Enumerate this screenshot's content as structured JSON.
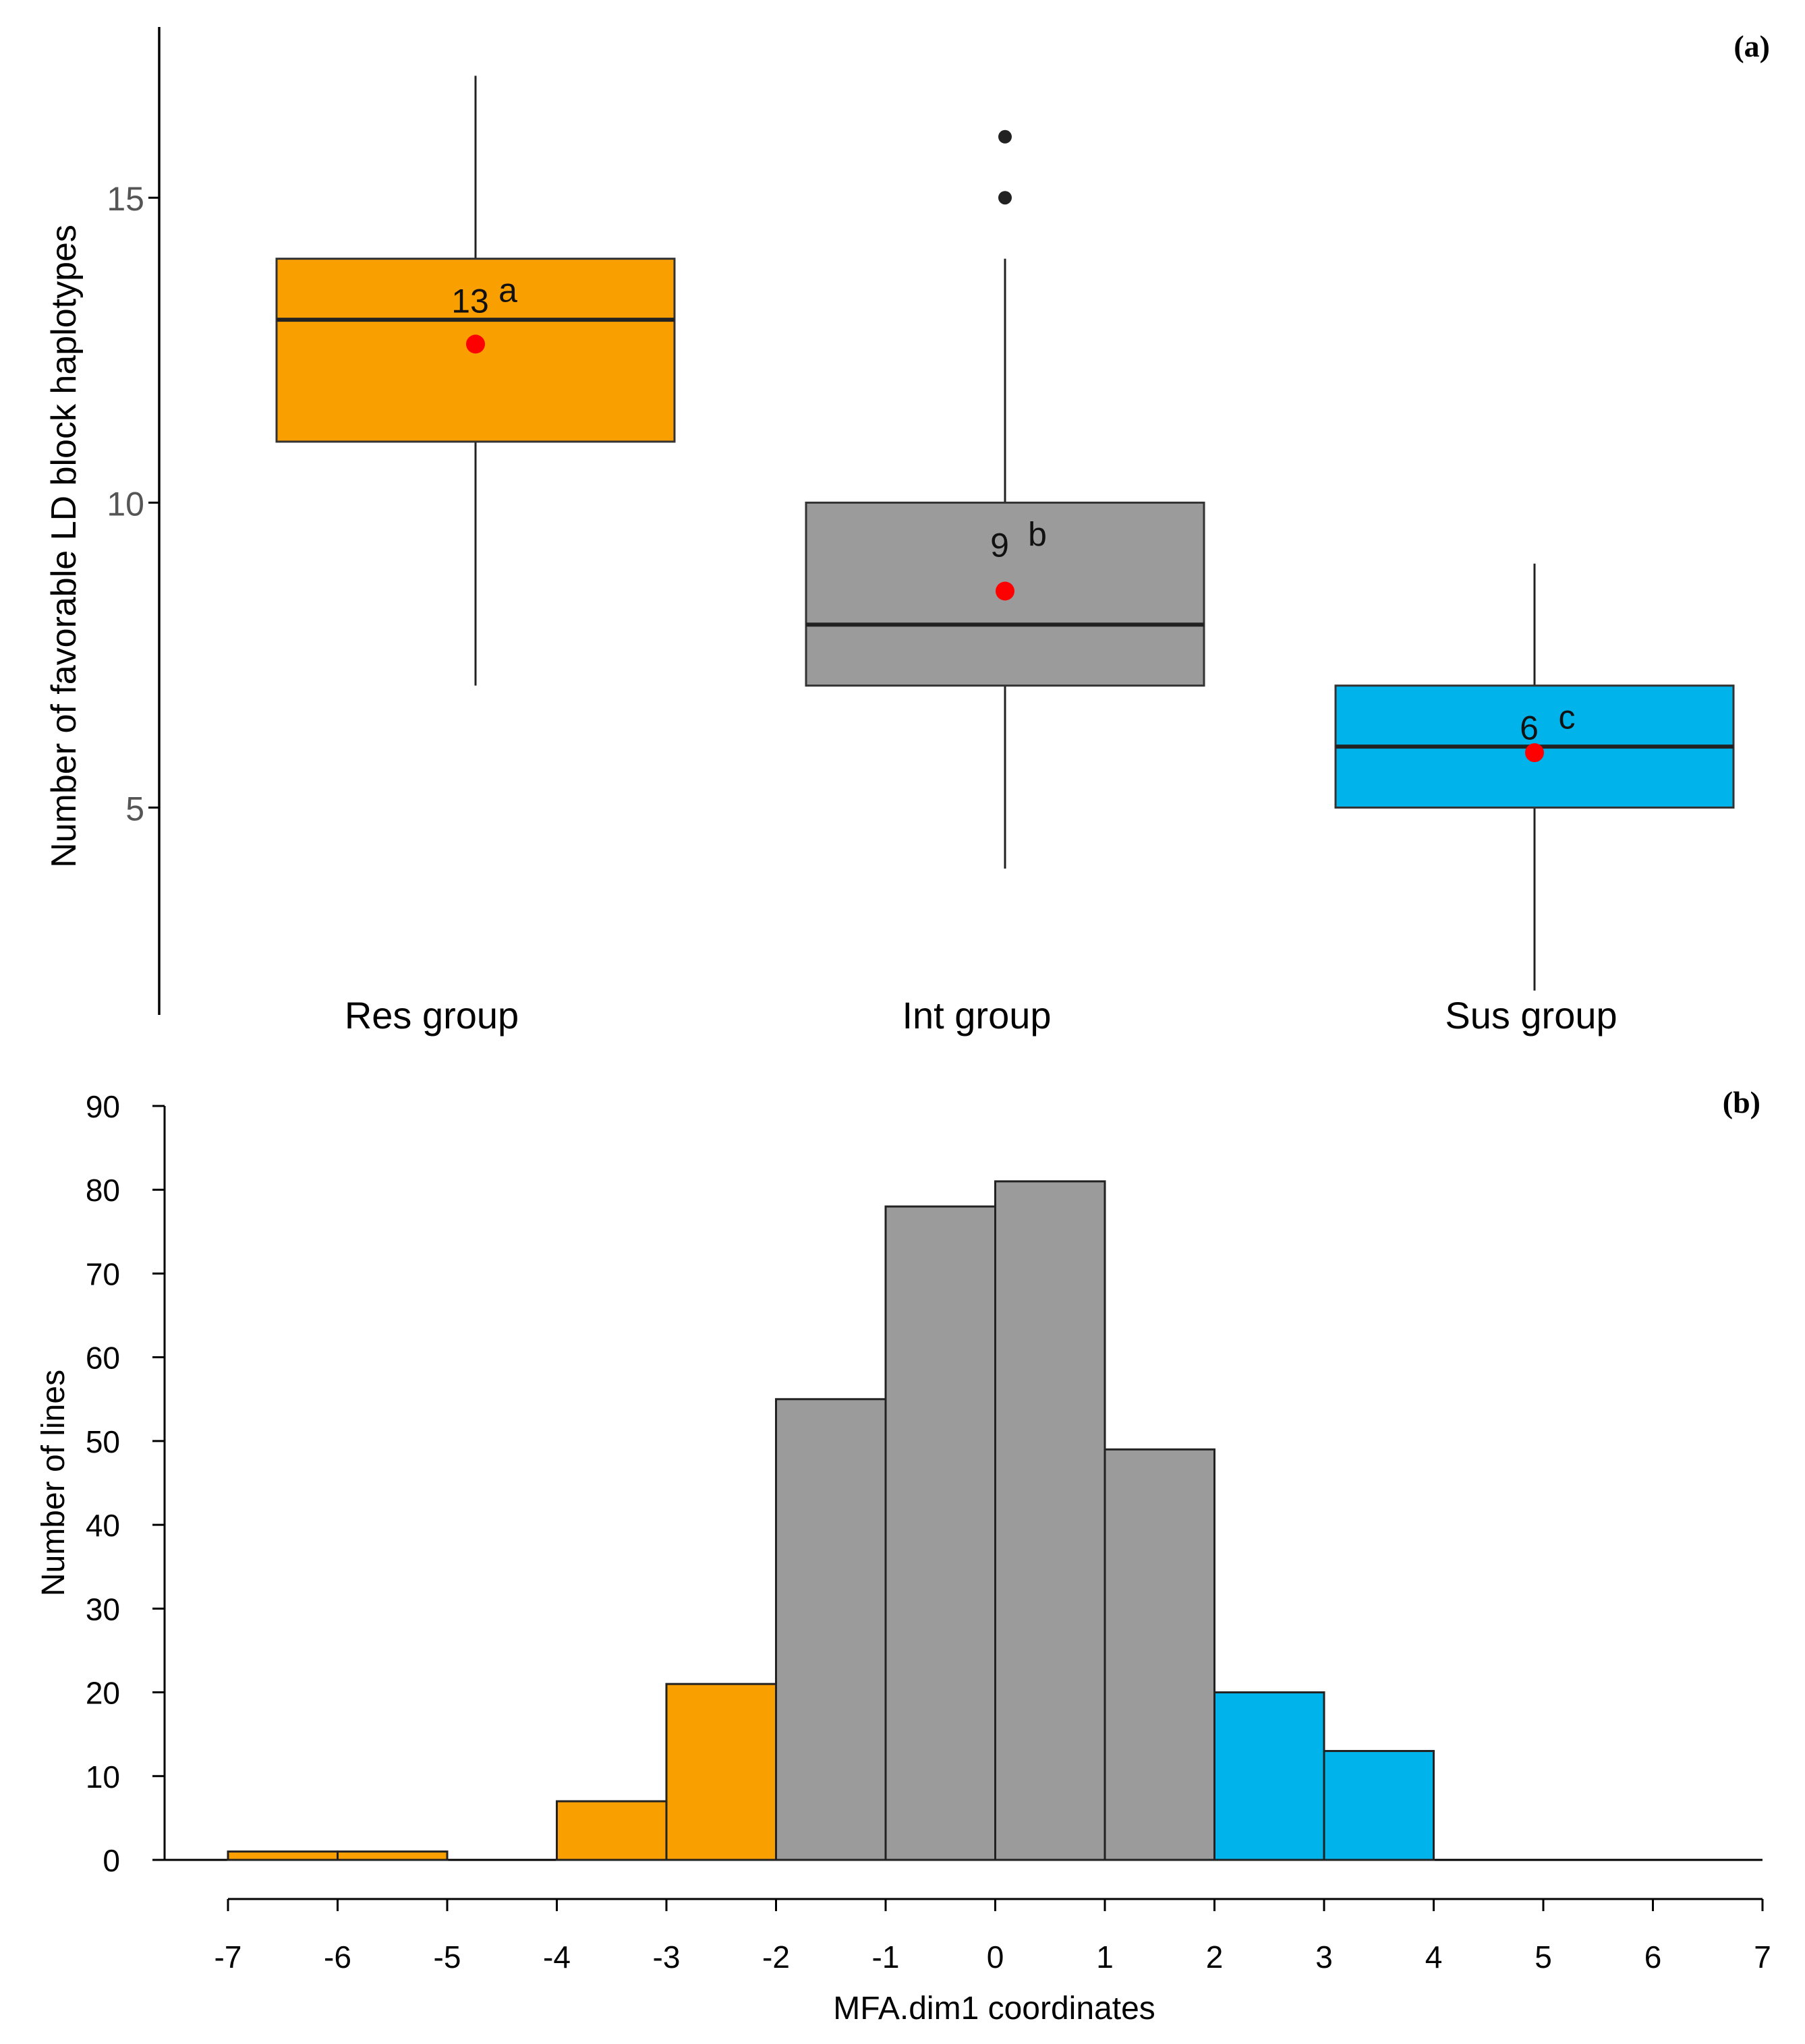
{
  "chart_data": [
    {
      "type": "box",
      "panel_label": "(a)",
      "ylabel": "Number of favorable LD block haplotypes",
      "xlabel": "",
      "ylim": [
        1.6,
        17.8
      ],
      "yticks": [
        5,
        10,
        15
      ],
      "grid": false,
      "categories": [
        "Res group",
        "Int group",
        "Sus group"
      ],
      "colors": [
        "#F99F00",
        "#9B9B9B",
        "#00B3EA"
      ],
      "boxes": [
        {
          "name": "Res group",
          "whisker_low": 7,
          "q1": 11,
          "median": 13,
          "q3": 14,
          "whisker_high": 17,
          "mean": 12.6,
          "outliers": [],
          "mean_label": "13",
          "letter": "a"
        },
        {
          "name": "Int group",
          "whisker_low": 4,
          "q1": 7,
          "median": 8,
          "q3": 10,
          "whisker_high": 14,
          "mean": 8.55,
          "outliers": [
            15,
            16
          ],
          "mean_label": "9",
          "letter": "b"
        },
        {
          "name": "Sus group",
          "whisker_low": 2,
          "q1": 5,
          "median": 6,
          "q3": 7,
          "whisker_high": 9,
          "mean": 5.9,
          "outliers": [],
          "mean_label": "6",
          "letter": "c"
        }
      ]
    },
    {
      "type": "histogram",
      "panel_label": "(b)",
      "xlabel": "MFA.dim1 coordinates",
      "ylabel": "Number of lines",
      "xlim": [
        -7,
        7
      ],
      "ylim": [
        0,
        90
      ],
      "xticks": [
        -7,
        -6,
        -5,
        -4,
        -3,
        -2,
        -1,
        0,
        1,
        2,
        3,
        4,
        5,
        6,
        7
      ],
      "yticks": [
        0,
        10,
        20,
        30,
        40,
        50,
        60,
        70,
        80,
        90
      ],
      "grid": false,
      "bins": [
        {
          "from": -7,
          "to": -6,
          "count": 1,
          "group": "Res group"
        },
        {
          "from": -6,
          "to": -5,
          "count": 1,
          "group": "Res group"
        },
        {
          "from": -5,
          "to": -4,
          "count": 0,
          "group": "Res group"
        },
        {
          "from": -4,
          "to": -3,
          "count": 7,
          "group": "Res group"
        },
        {
          "from": -3,
          "to": -2,
          "count": 21,
          "group": "Res group"
        },
        {
          "from": -2,
          "to": -1,
          "count": 55,
          "group": "Int group"
        },
        {
          "from": -1,
          "to": 0,
          "count": 78,
          "group": "Int group"
        },
        {
          "from": 0,
          "to": 1,
          "count": 81,
          "group": "Int group"
        },
        {
          "from": 1,
          "to": 2,
          "count": 49,
          "group": "Int group"
        },
        {
          "from": 2,
          "to": 3,
          "count": 20,
          "group": "Sus group"
        },
        {
          "from": 3,
          "to": 4,
          "count": 13,
          "group": "Sus group"
        },
        {
          "from": 4,
          "to": 5,
          "count": 0,
          "group": "Sus group"
        },
        {
          "from": 5,
          "to": 6,
          "count": 0,
          "group": "Sus group"
        },
        {
          "from": 6,
          "to": 7,
          "count": 0,
          "group": "Sus group"
        }
      ],
      "group_colors": {
        "Res group": "#F99F00",
        "Int group": "#9B9B9B",
        "Sus group": "#00B3EA"
      }
    }
  ]
}
